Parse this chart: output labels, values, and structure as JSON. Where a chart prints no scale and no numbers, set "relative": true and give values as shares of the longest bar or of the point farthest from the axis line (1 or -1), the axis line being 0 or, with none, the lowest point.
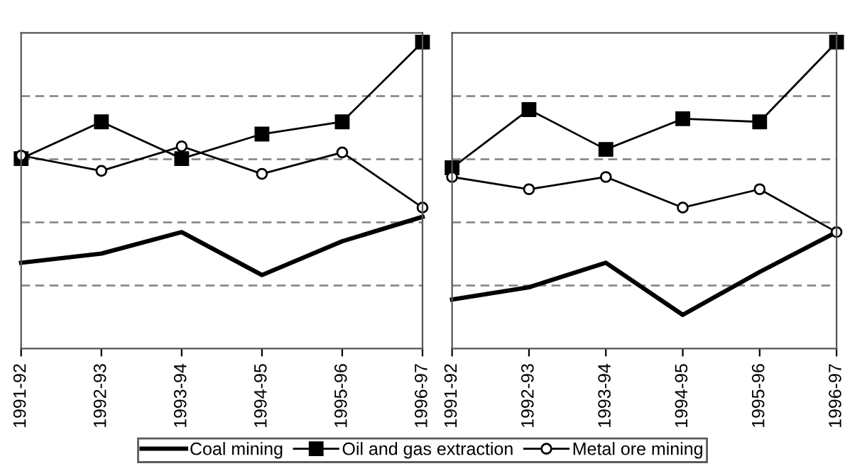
{
  "chart_data": [
    {
      "type": "line",
      "relative": true,
      "grid": "y",
      "legend": "bottom",
      "categories": [
        "1991-92",
        "1992-93",
        "1993-94",
        "1994-95",
        "1995-96",
        "1996-97"
      ],
      "series": [
        {
          "name": "Coal mining",
          "color": "#000000",
          "marker": "none",
          "values": [
            0.28,
            0.31,
            0.38,
            0.24,
            0.35,
            0.43
          ]
        },
        {
          "name": "Oil and gas extraction",
          "color": "#000000",
          "marker": "square",
          "values": [
            0.62,
            0.74,
            0.62,
            0.7,
            0.74,
            1.0
          ]
        },
        {
          "name": "Metal ore mining",
          "color": "#000000",
          "marker": "circle",
          "values": [
            0.63,
            0.58,
            0.66,
            0.57,
            0.64,
            0.46
          ]
        }
      ]
    },
    {
      "type": "line",
      "relative": true,
      "grid": "y",
      "legend": false,
      "categories": [
        "1991-92",
        "1992-93",
        "1993-94",
        "1994-95",
        "1995-96",
        "1996-97"
      ],
      "series": [
        {
          "color": "#000000",
          "marker": "none",
          "values": [
            0.16,
            0.2,
            0.28,
            0.11,
            0.25,
            0.38
          ]
        },
        {
          "color": "#000000",
          "marker": "square",
          "values": [
            0.59,
            0.78,
            0.65,
            0.75,
            0.74,
            1.0
          ]
        },
        {
          "color": "#000000",
          "marker": "circle",
          "values": [
            0.56,
            0.52,
            0.56,
            0.46,
            0.52,
            0.38
          ]
        }
      ]
    }
  ]
}
